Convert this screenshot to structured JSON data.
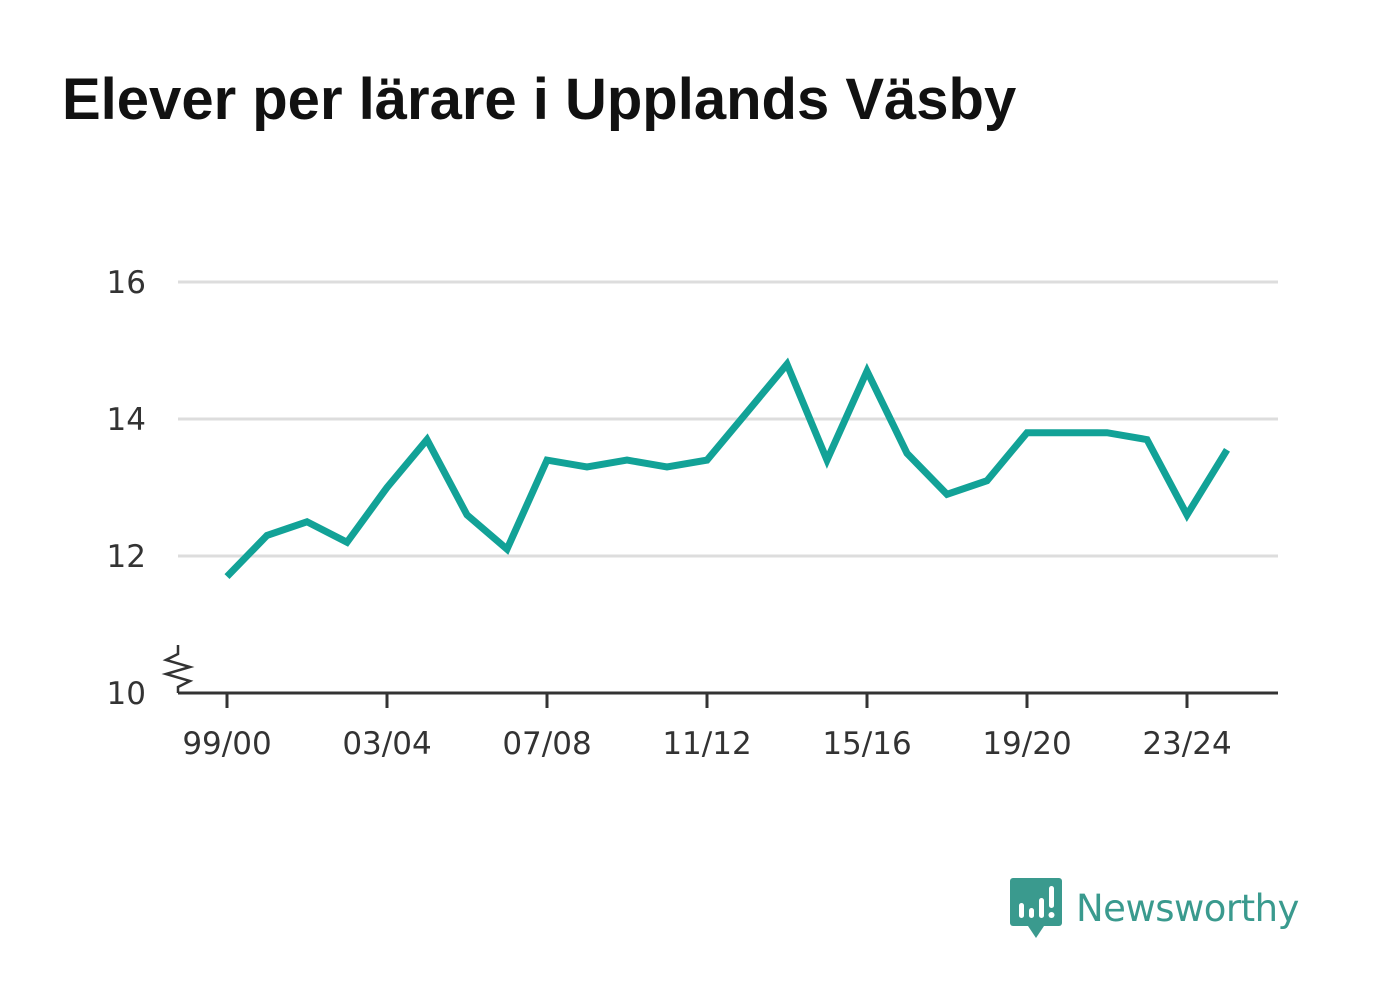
{
  "title": "Elever per lärare i Upplands Väsby",
  "brand": {
    "name": "Newsworthy",
    "icon": "newsworthy-logo-icon",
    "color": "#3a9a8e"
  },
  "colors": {
    "line": "#12a297",
    "grid": "#dddddd",
    "axis": "#333333"
  },
  "chart_data": {
    "type": "line",
    "title": "Elever per lärare i Upplands Väsby",
    "xlabel": "",
    "ylabel": "",
    "x": [
      "99/00",
      "00/01",
      "01/02",
      "02/03",
      "03/04",
      "04/05",
      "05/06",
      "06/07",
      "07/08",
      "08/09",
      "09/10",
      "10/11",
      "11/12",
      "12/13",
      "13/14",
      "14/15",
      "15/16",
      "16/17",
      "17/18",
      "18/19",
      "19/20",
      "20/21",
      "21/22",
      "22/23",
      "23/24",
      "24/25"
    ],
    "x_tick_labels": [
      "99/00",
      "03/04",
      "07/08",
      "11/12",
      "15/16",
      "19/20",
      "23/24"
    ],
    "series": [
      {
        "values": [
          11.7,
          12.3,
          12.5,
          12.2,
          13.0,
          13.7,
          12.6,
          12.1,
          13.4,
          13.3,
          13.4,
          13.3,
          13.4,
          14.1,
          14.8,
          13.4,
          14.7,
          13.5,
          12.9,
          13.1,
          13.8,
          13.8,
          13.8,
          13.7,
          12.6,
          13.55
        ],
        "color": "#12a297"
      }
    ],
    "y_ticks": [
      "10",
      "12",
      "14",
      "16"
    ],
    "ylim": [
      10,
      16
    ],
    "y_axis_break": true,
    "grid": true,
    "legend": "none"
  }
}
